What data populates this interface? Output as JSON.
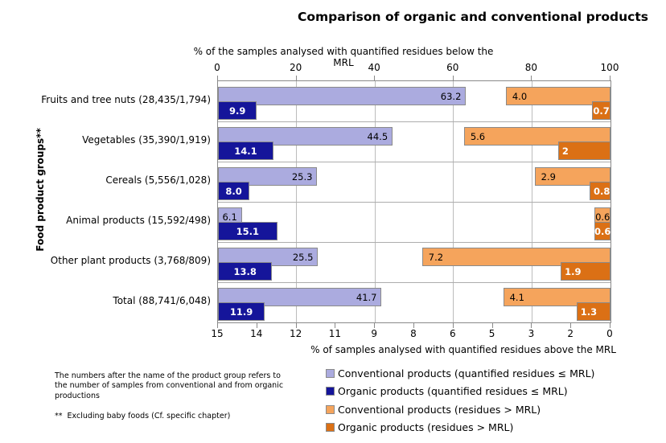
{
  "title": "Comparison of organic and conventional products",
  "chart_data": {
    "type": "bar",
    "orientation": "horizontal",
    "top_axis": {
      "label": "% of the samples analysed with quantified residues below the MRL",
      "ticks": [
        "0",
        "20",
        "40",
        "60",
        "80",
        "100"
      ],
      "range": [
        0,
        100
      ],
      "gridlines": [
        20,
        40,
        60,
        80
      ]
    },
    "bottom_axis": {
      "label": "% of samples analysed with quantified residues above the MRL",
      "tick_labels": [
        "15",
        "14",
        "12",
        "11",
        "9",
        "8",
        "6",
        "5",
        "3",
        "2",
        "0"
      ],
      "range": [
        15,
        0
      ]
    },
    "y_axis_label": "Food product groups**",
    "categories": [
      "Fruits and tree nuts (28,435/1,794)",
      "Vegetables (35,390/1,919)",
      "Cereals (5,556/1,028)",
      "Animal products (15,592/498)",
      "Other plant products (3,768/809)",
      "Total (88,741/6,048)"
    ],
    "series": [
      {
        "name": "Conventional products  (quantified residues ≤ MRL)",
        "axis": "top",
        "color": "#ababdf",
        "values": [
          63.2,
          44.5,
          25.3,
          6.1,
          25.5,
          41.7
        ],
        "labels": [
          "63.2",
          "44.5",
          "25.3",
          "6.1",
          "25.5",
          "41.7"
        ],
        "label_style": "dark-right"
      },
      {
        "name": "Organic products (quantified residues ≤ MRL)",
        "axis": "top",
        "color": "#15159a",
        "values": [
          9.9,
          14.1,
          8.0,
          15.1,
          13.8,
          11.9
        ],
        "labels": [
          "9.9",
          "14.1",
          "8.0",
          "15.1",
          "13.8",
          "11.9"
        ],
        "label_style": "light-center"
      },
      {
        "name": "Conventional products (residues > MRL)",
        "axis": "bottom",
        "color": "#f5a45c",
        "values": [
          4.0,
          5.6,
          2.9,
          0.6,
          7.2,
          4.1
        ],
        "labels": [
          "4.0",
          "5.6",
          "2.9",
          "0.6",
          "7.2",
          "4.1"
        ],
        "label_style": "dark-left"
      },
      {
        "name": "Organic products (residues > MRL)",
        "axis": "bottom",
        "color": "#db7015",
        "values": [
          0.7,
          2,
          0.8,
          0.6,
          1.9,
          1.3
        ],
        "labels": [
          "0.7",
          "2",
          "0.8",
          "0.6",
          "1.9",
          "1.3"
        ],
        "label_style": "light-left"
      }
    ]
  },
  "footnotes": {
    "sample_counts": "The numbers after the name of the product group refers to\nthe number of samples from conventional and from organic\nproductions",
    "baby_foods": "**  Excluding baby foods (Cf. specific chapter)"
  }
}
